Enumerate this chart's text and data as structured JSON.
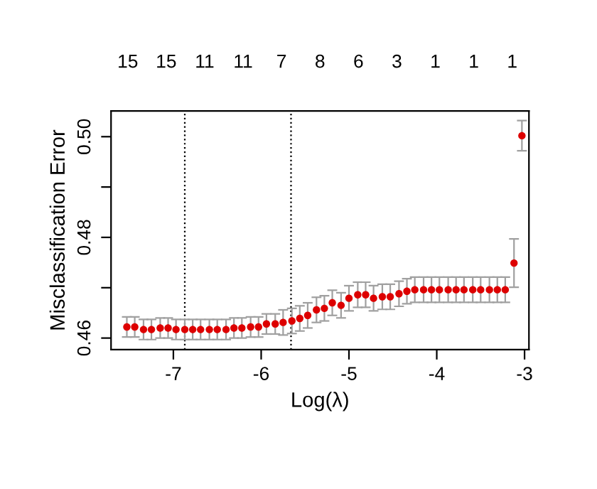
{
  "chart_data": {
    "type": "scatter",
    "xlabel": "Log(λ)",
    "ylabel": "Misclassification Error",
    "x": [
      -7.53,
      -7.44,
      -7.34,
      -7.25,
      -7.15,
      -7.06,
      -6.97,
      -6.87,
      -6.78,
      -6.69,
      -6.59,
      -6.5,
      -6.4,
      -6.31,
      -6.22,
      -6.12,
      -6.03,
      -5.94,
      -5.84,
      -5.75,
      -5.65,
      -5.56,
      -5.47,
      -5.37,
      -5.28,
      -5.19,
      -5.09,
      -5.0,
      -4.9,
      -4.81,
      -4.72,
      -4.62,
      -4.53,
      -4.43,
      -4.34,
      -4.25,
      -4.15,
      -4.06,
      -3.97,
      -3.87,
      -3.78,
      -3.69,
      -3.59,
      -3.5,
      -3.4,
      -3.31,
      -3.22,
      -3.12,
      -3.03
    ],
    "series": [
      {
        "color": "#dd0000",
        "values": [
          0.4622,
          0.4622,
          0.4617,
          0.4617,
          0.462,
          0.462,
          0.4617,
          0.4617,
          0.4617,
          0.4617,
          0.4617,
          0.4617,
          0.4617,
          0.462,
          0.462,
          0.4622,
          0.4622,
          0.4628,
          0.4628,
          0.4631,
          0.4634,
          0.4639,
          0.4645,
          0.4656,
          0.4659,
          0.467,
          0.4665,
          0.4679,
          0.4686,
          0.4686,
          0.4679,
          0.4682,
          0.4682,
          0.4688,
          0.4693,
          0.4696,
          0.4696,
          0.4696,
          0.4696,
          0.4696,
          0.4696,
          0.4696,
          0.4696,
          0.4696,
          0.4696,
          0.4696,
          0.4696,
          0.4749,
          0.5002
        ],
        "errors": [
          0.002,
          0.002,
          0.002,
          0.002,
          0.002,
          0.002,
          0.002,
          0.002,
          0.002,
          0.002,
          0.002,
          0.002,
          0.002,
          0.002,
          0.002,
          0.002,
          0.002,
          0.002,
          0.002,
          0.0025,
          0.0025,
          0.0025,
          0.0025,
          0.0025,
          0.0025,
          0.0025,
          0.0025,
          0.0025,
          0.0025,
          0.0025,
          0.0025,
          0.0025,
          0.0025,
          0.0025,
          0.0025,
          0.0025,
          0.0025,
          0.0025,
          0.0025,
          0.0025,
          0.0025,
          0.0025,
          0.0025,
          0.0025,
          0.0025,
          0.0025,
          0.0025,
          0.0048,
          0.003
        ]
      }
    ],
    "xlim": [
      -7.71,
      -2.95
    ],
    "xticks": [
      -7,
      -6,
      -5,
      -4,
      -3
    ],
    "ylim": [
      0.4577,
      0.5051
    ],
    "yticks": [
      {
        "value": 0.46,
        "label": "0.46"
      },
      {
        "value": 0.47,
        "label": null
      },
      {
        "value": 0.48,
        "label": "0.48"
      },
      {
        "value": 0.49,
        "label": null
      },
      {
        "value": 0.5,
        "label": "0.50"
      }
    ],
    "annotations": [
      "15",
      "15",
      "11",
      "11",
      "7",
      "8",
      "6",
      "3",
      "1",
      "1",
      "1"
    ],
    "ref_lines": [
      {
        "axis": "x",
        "value": -6.87,
        "color": "#000000",
        "line_style": "dotted"
      },
      {
        "axis": "x",
        "value": -5.66,
        "color": "#000000",
        "line_style": "dotted"
      }
    ],
    "marker": "circle",
    "grid": false
  }
}
